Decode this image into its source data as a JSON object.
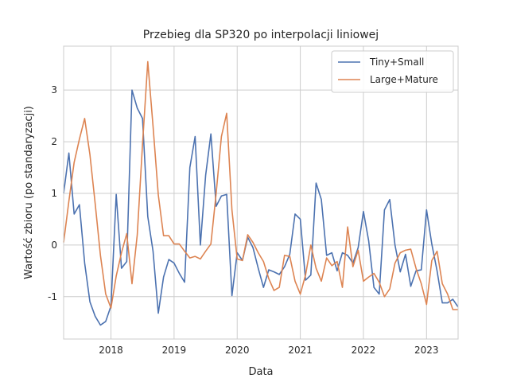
{
  "chart_data": {
    "type": "line",
    "title": "Przebieg dla SP320 po interpolacji liniowej",
    "xlabel": "Data",
    "ylabel": "Wartość zbioru (po standaryzacji)",
    "xlim": [
      "2017-04-01",
      "2023-07-01"
    ],
    "ylim": [
      -1.82,
      3.85
    ],
    "grid": true,
    "legend_position": "top-right",
    "x_ticks": [
      "2018",
      "2019",
      "2020",
      "2021",
      "2022",
      "2023"
    ],
    "y_ticks": [
      -1,
      0,
      1,
      2,
      3
    ],
    "x": [
      "2017-04",
      "2017-05",
      "2017-06",
      "2017-07",
      "2017-08",
      "2017-09",
      "2017-10",
      "2017-11",
      "2017-12",
      "2018-01",
      "2018-02",
      "2018-03",
      "2018-04",
      "2018-05",
      "2018-06",
      "2018-07",
      "2018-08",
      "2018-09",
      "2018-10",
      "2018-11",
      "2018-12",
      "2019-01",
      "2019-02",
      "2019-03",
      "2019-04",
      "2019-05",
      "2019-06",
      "2019-07",
      "2019-08",
      "2019-09",
      "2019-10",
      "2019-11",
      "2019-12",
      "2020-01",
      "2020-02",
      "2020-03",
      "2020-04",
      "2020-05",
      "2020-06",
      "2020-07",
      "2020-08",
      "2020-09",
      "2020-10",
      "2020-11",
      "2020-12",
      "2021-01",
      "2021-02",
      "2021-03",
      "2021-04",
      "2021-05",
      "2021-06",
      "2021-07",
      "2021-08",
      "2021-09",
      "2021-10",
      "2021-11",
      "2021-12",
      "2022-01",
      "2022-02",
      "2022-03",
      "2022-04",
      "2022-05",
      "2022-06",
      "2022-07",
      "2022-08",
      "2022-09",
      "2022-10",
      "2022-11",
      "2022-12",
      "2023-01",
      "2023-02",
      "2023-03",
      "2023-04",
      "2023-05",
      "2023-06",
      "2023-07"
    ],
    "series": [
      {
        "name": "Tiny+Small",
        "color": "#4c72b0",
        "values": [
          1.0,
          1.78,
          0.6,
          0.78,
          -0.35,
          -1.1,
          -1.38,
          -1.55,
          -1.48,
          -1.18,
          0.98,
          -0.45,
          -0.32,
          3.0,
          2.65,
          2.45,
          0.55,
          -0.12,
          -1.32,
          -0.62,
          -0.28,
          -0.35,
          -0.55,
          -0.72,
          1.5,
          2.1,
          0.0,
          1.35,
          2.15,
          0.75,
          0.95,
          0.98,
          -0.98,
          -0.15,
          -0.3,
          0.15,
          -0.05,
          -0.45,
          -0.82,
          -0.48,
          -0.52,
          -0.57,
          -0.42,
          -0.18,
          0.6,
          0.5,
          -0.68,
          -0.58,
          1.2,
          0.88,
          -0.2,
          -0.15,
          -0.5,
          -0.15,
          -0.2,
          -0.35,
          -0.05,
          0.65,
          0.08,
          -0.82,
          -0.95,
          0.68,
          0.88,
          0.0,
          -0.52,
          -0.18,
          -0.8,
          -0.5,
          -0.48,
          0.68,
          0.02,
          -0.5,
          -1.12,
          -1.12,
          -1.05,
          -1.2
        ]
      },
      {
        "name": "Large+Mature",
        "color": "#dd8452",
        "values": [
          0.05,
          0.85,
          1.6,
          2.05,
          2.45,
          1.75,
          0.8,
          -0.2,
          -0.95,
          -1.22,
          -0.6,
          -0.15,
          0.22,
          -0.75,
          0.2,
          1.95,
          3.55,
          2.3,
          0.97,
          0.18,
          0.18,
          0.02,
          0.02,
          -0.12,
          -0.25,
          -0.22,
          -0.27,
          -0.12,
          0.02,
          1.0,
          2.1,
          2.55,
          0.68,
          -0.27,
          -0.3,
          0.2,
          0.05,
          -0.15,
          -0.32,
          -0.65,
          -0.88,
          -0.82,
          -0.2,
          -0.22,
          -0.7,
          -0.95,
          -0.58,
          0.0,
          -0.45,
          -0.7,
          -0.25,
          -0.4,
          -0.32,
          -0.82,
          0.35,
          -0.42,
          -0.1,
          -0.7,
          -0.62,
          -0.55,
          -0.72,
          -1.0,
          -0.85,
          -0.35,
          -0.15,
          -0.1,
          -0.08,
          -0.45,
          -0.75,
          -1.15,
          -0.3,
          -0.12,
          -0.75,
          -0.95,
          -1.25,
          -1.25
        ]
      }
    ]
  }
}
